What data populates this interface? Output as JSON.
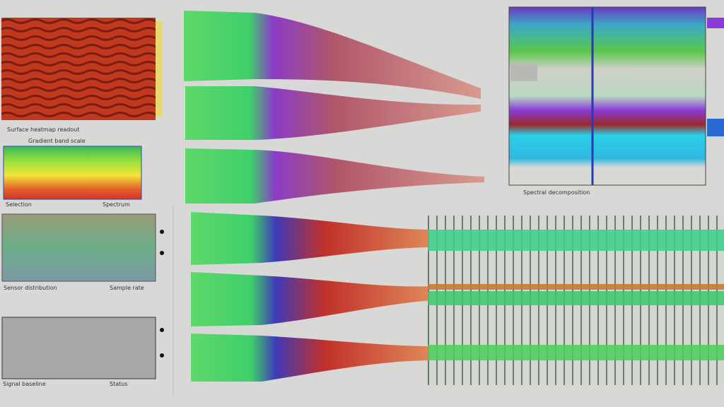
{
  "panels": [
    {
      "caption": "Surface heatmap readout"
    },
    {
      "title": "Gradient band scale"
    },
    {
      "caption_left": "Selection",
      "caption_right": "Spectrum"
    },
    {
      "caption_left": "Sensor distribution",
      "caption_right": "Sample rate"
    },
    {
      "caption_left": "Signal baseline",
      "caption_right": "Status"
    }
  ],
  "spectrogram": {
    "axis_caption": "Spectral decomposition"
  }
}
